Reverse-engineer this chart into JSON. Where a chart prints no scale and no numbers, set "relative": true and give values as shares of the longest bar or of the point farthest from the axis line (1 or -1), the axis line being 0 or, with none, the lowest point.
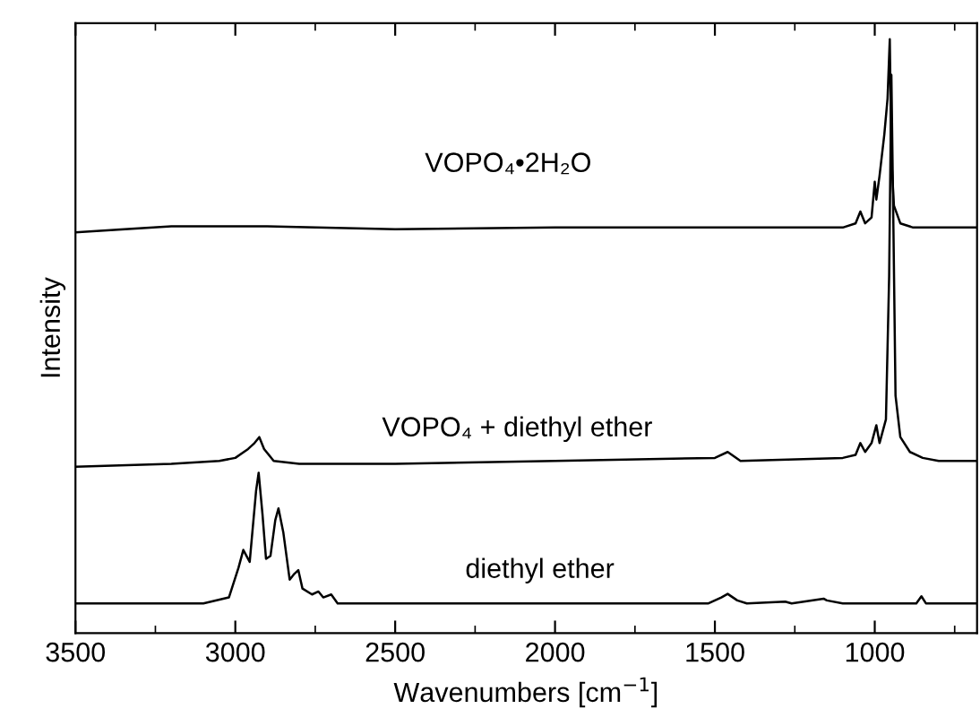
{
  "chart_data": {
    "type": "line",
    "relative": true,
    "xlabel": "Wavenumbers [cm$^{−1}$]",
    "ylabel": "Intensity",
    "tick_labels": "x",
    "xlim": [
      3500,
      680
    ],
    "xticks": [
      3500,
      3000,
      2500,
      2000,
      1500,
      1000
    ],
    "grid": false,
    "legend": false,
    "marker": "none",
    "line_style": "solid",
    "series": [
      {
        "name": "VOPO₄•2H₂O",
        "color": "#000000",
        "x": [
          3500,
          3200,
          2900,
          2500,
          2000,
          1500,
          1100,
          1060,
          1045,
          1030,
          1010,
          1000,
          995,
          985,
          970,
          960,
          953,
          948,
          940,
          920,
          880,
          800,
          680
        ],
        "values": [
          0.675,
          0.685,
          0.685,
          0.68,
          0.683,
          0.683,
          0.683,
          0.69,
          0.71,
          0.69,
          0.7,
          0.76,
          0.73,
          0.77,
          0.84,
          0.9,
          1.0,
          0.8,
          0.72,
          0.69,
          0.683,
          0.683,
          0.683
        ]
      },
      {
        "name": "VOPO₄ + diethyl ether",
        "color": "#000000",
        "x": [
          3500,
          3200,
          3050,
          3000,
          2960,
          2940,
          2925,
          2910,
          2880,
          2800,
          2500,
          2000,
          1500,
          1460,
          1420,
          1100,
          1060,
          1045,
          1030,
          1010,
          995,
          985,
          965,
          955,
          948,
          942,
          935,
          920,
          890,
          850,
          800,
          680
        ],
        "values": [
          0.28,
          0.285,
          0.29,
          0.295,
          0.31,
          0.32,
          0.33,
          0.31,
          0.29,
          0.285,
          0.285,
          0.29,
          0.295,
          0.305,
          0.29,
          0.295,
          0.3,
          0.32,
          0.305,
          0.32,
          0.35,
          0.32,
          0.36,
          0.6,
          0.94,
          0.7,
          0.4,
          0.33,
          0.305,
          0.295,
          0.29,
          0.29
        ]
      },
      {
        "name": "diethyl ether",
        "color": "#000000",
        "x": [
          3500,
          3100,
          3020,
          2990,
          2975,
          2955,
          2935,
          2927,
          2915,
          2904,
          2890,
          2875,
          2865,
          2850,
          2830,
          2815,
          2803,
          2790,
          2760,
          2740,
          2725,
          2700,
          2680,
          2500,
          2000,
          1520,
          1480,
          1460,
          1430,
          1400,
          1280,
          1260,
          1160,
          1150,
          1100,
          870,
          854,
          840,
          680
        ],
        "values": [
          0.05,
          0.05,
          0.06,
          0.11,
          0.14,
          0.12,
          0.24,
          0.27,
          0.2,
          0.125,
          0.13,
          0.19,
          0.21,
          0.17,
          0.09,
          0.1,
          0.106,
          0.075,
          0.065,
          0.07,
          0.06,
          0.065,
          0.05,
          0.05,
          0.05,
          0.05,
          0.06,
          0.066,
          0.055,
          0.05,
          0.053,
          0.05,
          0.058,
          0.055,
          0.05,
          0.05,
          0.062,
          0.05,
          0.05
        ]
      }
    ]
  }
}
